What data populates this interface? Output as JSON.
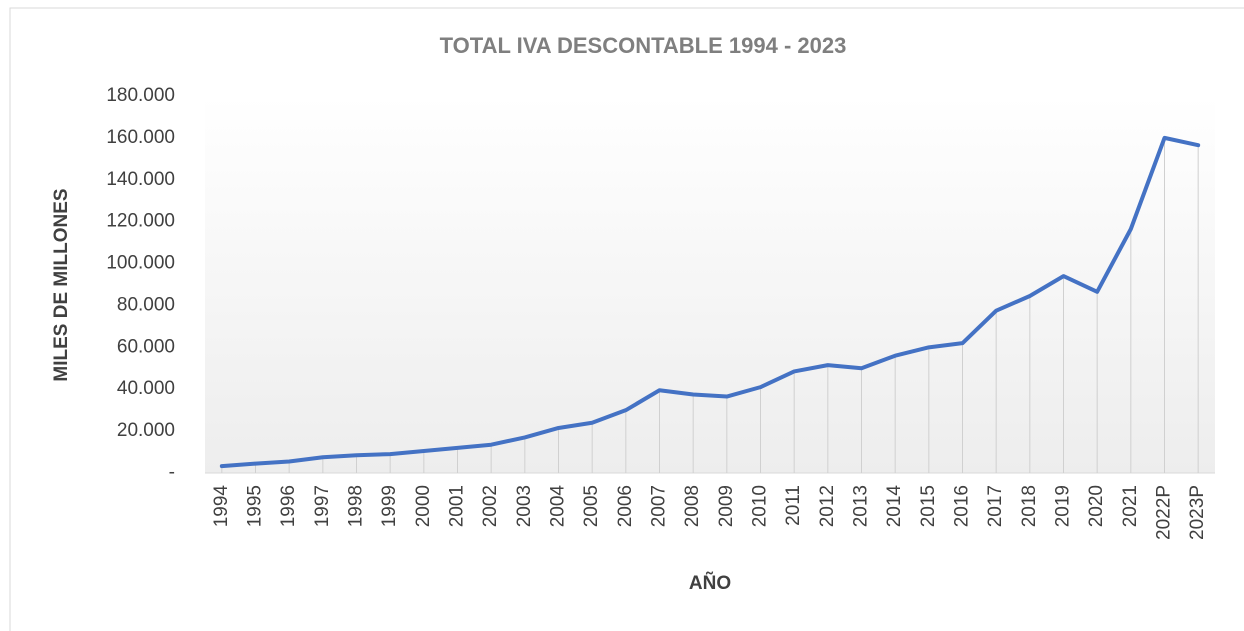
{
  "chart_data": {
    "type": "line",
    "title": "TOTAL IVA DESCONTABLE 1994 - 2023",
    "x_label": "AÑO",
    "y_label": "MILES DE MILLONES",
    "categories": [
      "1994",
      "1995",
      "1996",
      "1997",
      "1998",
      "1999",
      "2000",
      "2001",
      "2002",
      "2003",
      "2004",
      "2005",
      "2006",
      "2007",
      "2008",
      "2009",
      "2010",
      "2011",
      "2012",
      "2013",
      "2014",
      "2015",
      "2016",
      "2017",
      "2018",
      "2019",
      "2020",
      "2021",
      "2022P",
      "2023P"
    ],
    "series": [
      {
        "name": "TOTAL IVA DESCONTABLE",
        "color": "#4472c4",
        "values": [
          3300,
          4500,
          5500,
          7500,
          8500,
          9000,
          10500,
          12000,
          13500,
          17000,
          21500,
          24000,
          30000,
          39500,
          37500,
          36500,
          41000,
          48500,
          51500,
          50000,
          56000,
          60000,
          62000,
          77500,
          84500,
          94000,
          86500,
          116500,
          160000,
          156500
        ]
      }
    ],
    "ylim": [
      0,
      180000
    ],
    "yticks": [
      {
        "value": 0,
        "label": "-"
      },
      {
        "value": 20000,
        "label": "20.000"
      },
      {
        "value": 40000,
        "label": "40.000"
      },
      {
        "value": 60000,
        "label": "60.000"
      },
      {
        "value": 80000,
        "label": "80.000"
      },
      {
        "value": 100000,
        "label": "100.000"
      },
      {
        "value": 120000,
        "label": "120.000"
      },
      {
        "value": 140000,
        "label": "140.000"
      },
      {
        "value": 160000,
        "label": "160.000"
      },
      {
        "value": 180000,
        "label": "180.000"
      }
    ],
    "drop_lines": true
  }
}
